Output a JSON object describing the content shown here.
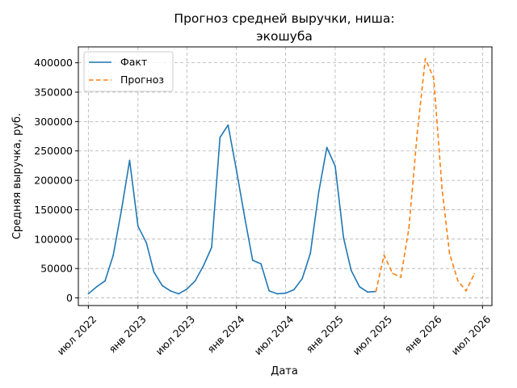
{
  "chart_data": {
    "type": "line",
    "title_lines": [
      "Прогноз средней выручки, ниша:",
      "экошуба"
    ],
    "xlabel": "Дата",
    "ylabel": "Средняя выручка, руб.",
    "xlim": [
      "2022-05-25",
      "2026-08-05"
    ],
    "ylim": [
      -13000,
      427000
    ],
    "x_ticks": [
      {
        "date": "2022-07-01",
        "label": "июл 2022"
      },
      {
        "date": "2023-01-01",
        "label": "янв 2023"
      },
      {
        "date": "2023-07-01",
        "label": "июл 2023"
      },
      {
        "date": "2024-01-01",
        "label": "янв 2024"
      },
      {
        "date": "2024-07-01",
        "label": "июл 2024"
      },
      {
        "date": "2025-01-01",
        "label": "янв 2025"
      },
      {
        "date": "2025-07-01",
        "label": "июл 2025"
      },
      {
        "date": "2026-01-01",
        "label": "янв 2026"
      },
      {
        "date": "2026-07-01",
        "label": "июл 2026"
      }
    ],
    "y_ticks": [
      0,
      50000,
      100000,
      150000,
      200000,
      250000,
      300000,
      350000,
      400000
    ],
    "grid": true,
    "legend_position": "top-left",
    "series": [
      {
        "name": "Факт",
        "color": "#1f77b4",
        "style": "solid",
        "points": [
          [
            "2022-07-01",
            7000
          ],
          [
            "2022-08-01",
            19000
          ],
          [
            "2022-09-01",
            29000
          ],
          [
            "2022-10-01",
            72000
          ],
          [
            "2022-11-01",
            150000
          ],
          [
            "2022-12-01",
            234000
          ],
          [
            "2023-01-01",
            122000
          ],
          [
            "2023-02-01",
            94000
          ],
          [
            "2023-03-01",
            44000
          ],
          [
            "2023-04-01",
            21000
          ],
          [
            "2023-05-01",
            12000
          ],
          [
            "2023-06-01",
            7000
          ],
          [
            "2023-07-01",
            15000
          ],
          [
            "2023-08-01",
            29000
          ],
          [
            "2023-09-01",
            55000
          ],
          [
            "2023-10-01",
            86000
          ],
          [
            "2023-11-01",
            273000
          ],
          [
            "2023-12-01",
            294000
          ],
          [
            "2024-01-01",
            217000
          ],
          [
            "2024-02-01",
            136000
          ],
          [
            "2024-03-01",
            64000
          ],
          [
            "2024-04-01",
            58000
          ],
          [
            "2024-05-01",
            12000
          ],
          [
            "2024-06-01",
            7000
          ],
          [
            "2024-07-01",
            8000
          ],
          [
            "2024-08-01",
            14000
          ],
          [
            "2024-09-01",
            33000
          ],
          [
            "2024-10-01",
            76000
          ],
          [
            "2024-11-01",
            180000
          ],
          [
            "2024-12-01",
            256000
          ],
          [
            "2025-01-01",
            224000
          ],
          [
            "2025-02-01",
            102000
          ],
          [
            "2025-03-01",
            47000
          ],
          [
            "2025-04-01",
            19000
          ],
          [
            "2025-05-01",
            10000
          ],
          [
            "2025-06-01",
            11000
          ]
        ]
      },
      {
        "name": "Прогноз",
        "color": "#ff7f0e",
        "style": "dashed",
        "points": [
          [
            "2025-06-01",
            11000
          ],
          [
            "2025-07-01",
            73000
          ],
          [
            "2025-08-01",
            42000
          ],
          [
            "2025-09-01",
            35000
          ],
          [
            "2025-10-01",
            118000
          ],
          [
            "2025-11-01",
            280000
          ],
          [
            "2025-12-01",
            407000
          ],
          [
            "2026-01-01",
            374000
          ],
          [
            "2026-02-01",
            186000
          ],
          [
            "2026-03-01",
            75000
          ],
          [
            "2026-04-01",
            29000
          ],
          [
            "2026-05-01",
            12000
          ],
          [
            "2026-06-01",
            41000
          ]
        ]
      }
    ]
  }
}
